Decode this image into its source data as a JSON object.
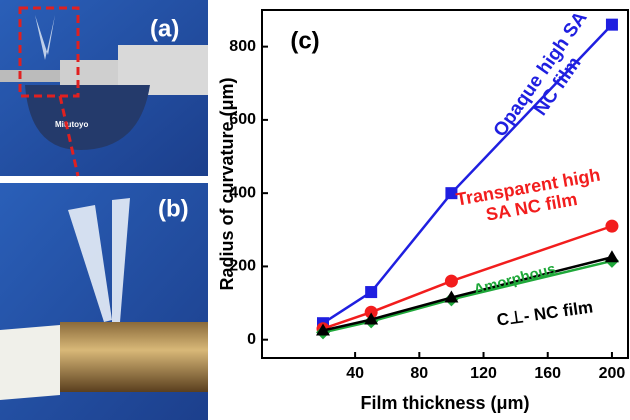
{
  "panels": [
    {
      "label": "(a)",
      "text": "Mitutoyo"
    },
    {
      "label": "(b)"
    }
  ],
  "chart_data": {
    "type": "line",
    "title": "(c)",
    "x_label": "Film thickness (μm)",
    "y_label": "Radius of curvature (μm)",
    "x": [
      20,
      50,
      100,
      200
    ],
    "series": [
      {
        "name": "Opaque high SA NC film",
        "color": "#1f1fe0",
        "marker": "square",
        "values": [
          45,
          130,
          400,
          860
        ]
      },
      {
        "name": "Transparent high SA NC film",
        "color": "#f21d1d",
        "marker": "circle",
        "values": [
          30,
          75,
          160,
          310
        ]
      },
      {
        "name": "Amorphous",
        "color": "#1fa83a",
        "marker": "diamond",
        "values": [
          20,
          50,
          110,
          215
        ]
      },
      {
        "name": "C⊥- NC film",
        "color": "#000000",
        "marker": "triangle",
        "values": [
          25,
          55,
          115,
          225
        ]
      }
    ],
    "xlim": [
      -18,
      210
    ],
    "xticks": [
      40,
      80,
      120,
      160,
      200
    ],
    "ylim": [
      -50,
      900
    ],
    "yticks": [
      0,
      200,
      400,
      600,
      800
    ]
  }
}
